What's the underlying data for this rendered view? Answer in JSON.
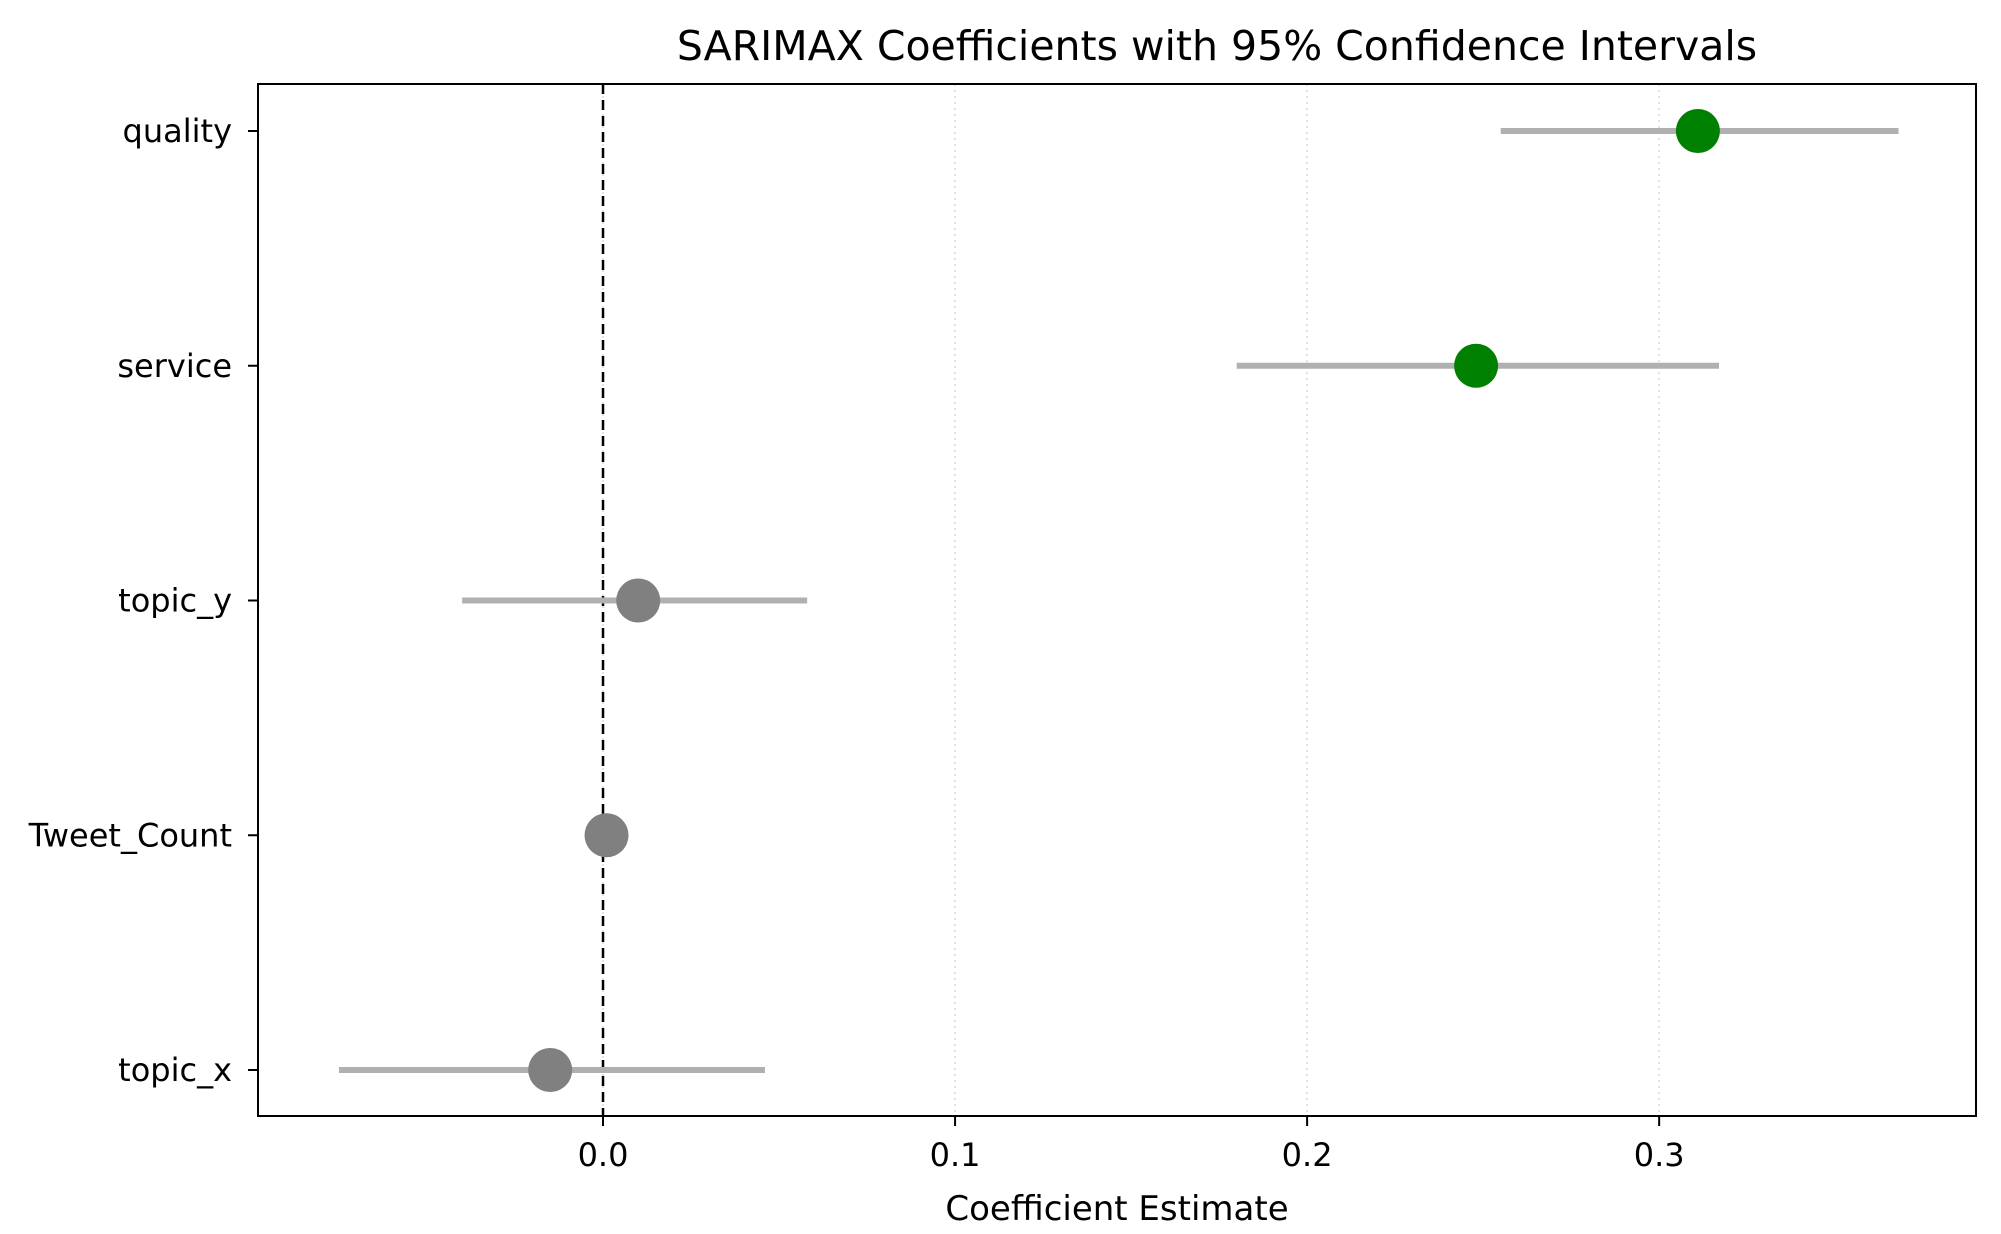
{
  "chart_data": {
    "type": "scatter",
    "title": "SARIMAX Coefficients with 95% Confidence Intervals",
    "xlabel": "Coefficient Estimate",
    "ylabel": "",
    "xlim": [
      -0.098,
      0.39
    ],
    "x_ticks": [
      "0.0",
      "0.1",
      "0.2",
      "0.3"
    ],
    "x_tick_values": [
      0.0,
      0.1,
      0.2,
      0.3
    ],
    "grid": "vertical dotted",
    "reference_line": 0.0,
    "categories": [
      "quality",
      "service",
      "topic_y",
      "Tweet_Count",
      "topic_x"
    ],
    "estimates": [
      0.311,
      0.248,
      0.01,
      0.001,
      -0.015
    ],
    "ci_lower": [
      0.255,
      0.18,
      -0.04,
      0.0,
      -0.075
    ],
    "ci_upper": [
      0.368,
      0.317,
      0.058,
      0.002,
      0.046
    ],
    "significant": [
      true,
      true,
      false,
      false,
      false
    ],
    "colors": {
      "significant": "#008000",
      "not_significant": "#808080",
      "ci_line": "#b0b0b0",
      "reference": "#000000",
      "grid": "#d8d8d8"
    }
  }
}
